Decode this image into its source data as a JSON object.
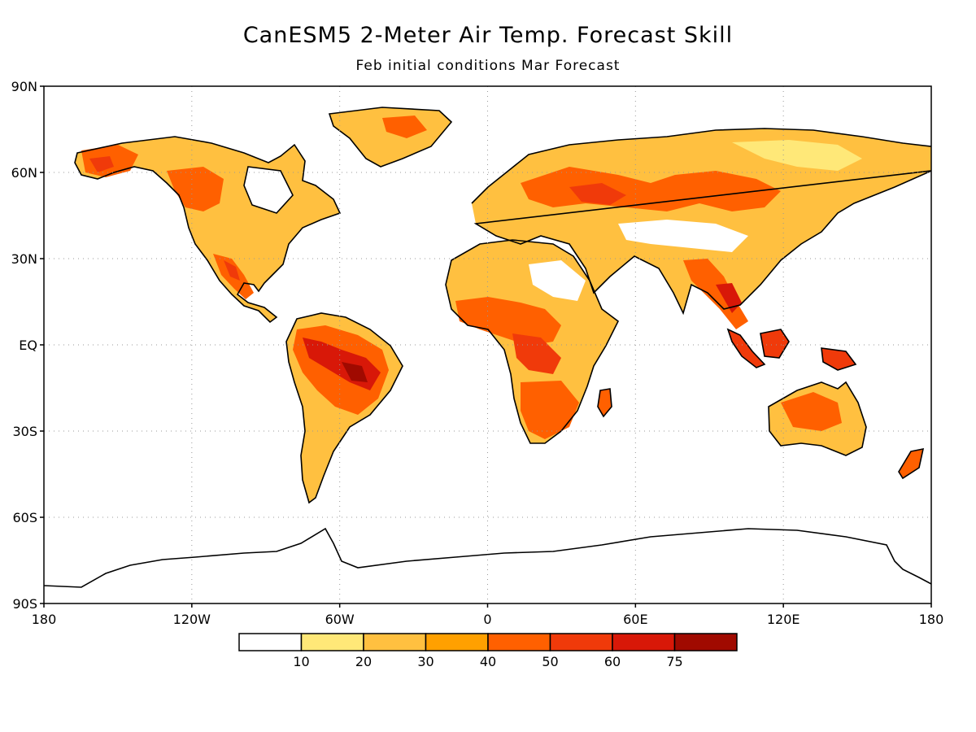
{
  "map": {
    "title": "CanESM5 2-Meter Air Temp. Forecast Skill",
    "subtitle": "Feb initial conditions  Mar Forecast",
    "lat_labels": [
      "90N",
      "60N",
      "30N",
      "EQ",
      "30S",
      "60S",
      "90S"
    ],
    "lon_labels": [
      "180",
      "120W",
      "60W",
      "0",
      "60E",
      "120E",
      "180"
    ],
    "lat_values": [
      90,
      60,
      30,
      0,
      -30,
      -60,
      -90
    ],
    "lon_values": [
      -180,
      -120,
      -60,
      0,
      60,
      120,
      180
    ]
  },
  "colorbar": {
    "bins": [
      {
        "color": "#ffffff"
      },
      {
        "color": "#ffe878"
      },
      {
        "color": "#ffc040"
      },
      {
        "color": "#ffa000"
      },
      {
        "color": "#ff6000"
      },
      {
        "color": "#f03a0a"
      },
      {
        "color": "#d81808"
      },
      {
        "color": "#a00a00"
      }
    ],
    "labels": [
      "10",
      "20",
      "30",
      "40",
      "50",
      "60",
      "75"
    ]
  }
}
